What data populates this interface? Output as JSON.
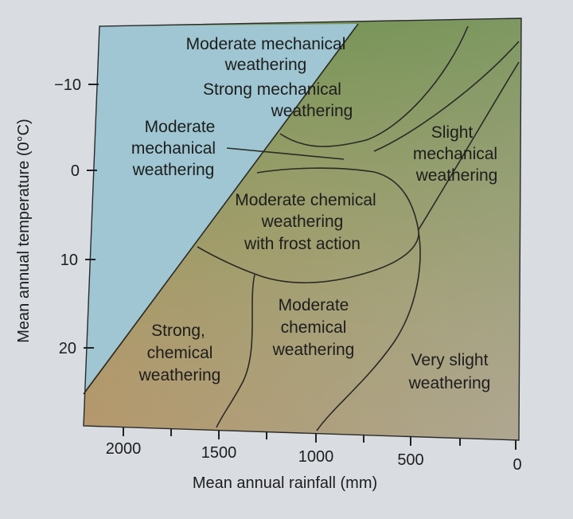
{
  "colors": {
    "mechanical_region": "#9fc6d2",
    "chemical_warm": "#d5905f",
    "vegetation_green": "#7f9a5c",
    "dry_gray": "#a9a798",
    "page": "#d9dde2"
  },
  "axes": {
    "y_label": "Mean annual temperature (0°C)",
    "x_label": "Mean annual rainfall (mm)",
    "y_ticks": [
      "−10",
      "0",
      "10",
      "20"
    ],
    "x_ticks": [
      "2000",
      "1500",
      "1000",
      "500",
      "0"
    ]
  },
  "regions": {
    "moderate_mechanical_top": [
      "Moderate mechanical",
      "weathering"
    ],
    "strong_mechanical": [
      "Strong mechanical",
      "weathering"
    ],
    "moderate_mechanical_left": [
      "Moderate",
      "mechanical",
      "weathering"
    ],
    "slight_mechanical": [
      "Slight",
      "mechanical",
      "weathering"
    ],
    "moderate_chemical_frost": [
      "Moderate chemical",
      "weathering",
      "with frost action"
    ],
    "moderate_chemical": [
      "Moderate",
      "chemical",
      "weathering"
    ],
    "strong_chemical": [
      "Strong,",
      "chemical",
      "weathering"
    ],
    "very_slight": [
      "Very slight",
      "weathering"
    ]
  }
}
